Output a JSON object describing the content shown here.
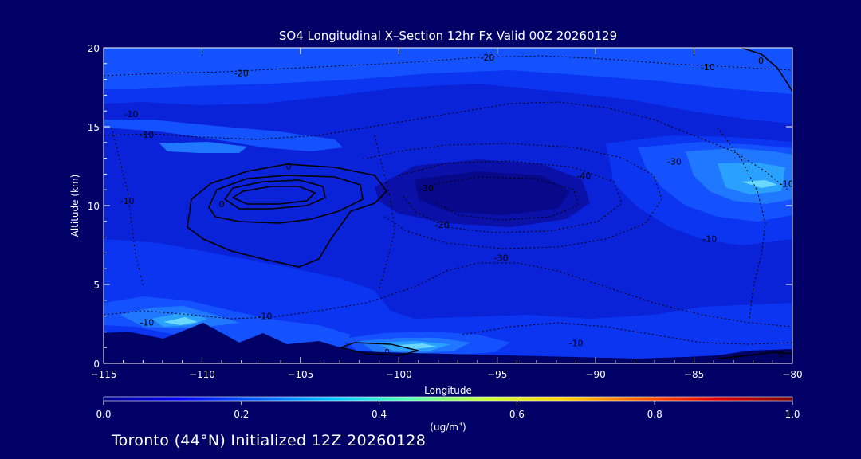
{
  "chart_data": {
    "type": "heatmap",
    "title": "SO4 Longitudinal X–Section 12hr  Fx Valid 00Z 20260129",
    "xlabel": "Longitude",
    "ylabel": "Altitude (km)",
    "xlim": [
      -115,
      -80
    ],
    "ylim": [
      0,
      20
    ],
    "x_ticks": [
      "−115",
      "−110",
      "−105",
      "−100",
      "−95",
      "−90",
      "−85",
      "−80"
    ],
    "x_tick_values": [
      -115,
      -110,
      -105,
      -100,
      -95,
      -90,
      -85,
      -80
    ],
    "y_ticks": [
      "0",
      "5",
      "10",
      "15",
      "20"
    ],
    "y_tick_values": [
      0,
      5,
      10,
      15,
      20
    ],
    "colorbar": {
      "min": 0.0,
      "max": 1.0,
      "ticks": [
        "0.0",
        "0.2",
        "0.4",
        "0.6",
        "0.8",
        "1.0"
      ],
      "tick_values": [
        0.0,
        0.2,
        0.4,
        0.6,
        0.8,
        1.0
      ],
      "units_main": "(ug/m",
      "units_sup": "3",
      "units_close": ")",
      "colors": [
        "#000088",
        "#0000ff",
        "#0060ff",
        "#00c8ff",
        "#50ffb0",
        "#c8ff30",
        "#ffd000",
        "#ff6000",
        "#e00000",
        "#800000"
      ]
    },
    "field_levels": [
      {
        "value": 0.08,
        "color": "#0a10a8"
      },
      {
        "value": 0.12,
        "color": "#0a22d8"
      },
      {
        "value": 0.16,
        "color": "#0b35f0"
      },
      {
        "value": 0.2,
        "color": "#1452ff"
      },
      {
        "value": 0.27,
        "color": "#1f78ff"
      },
      {
        "value": 0.33,
        "color": "#2aa0ff"
      },
      {
        "value": 0.42,
        "color": "#6ad8ff"
      }
    ],
    "contour_labels": [
      {
        "text": "-20",
        "lon": -108.0,
        "alt": 18.4
      },
      {
        "text": "-20",
        "lon": -95.5,
        "alt": 19.4
      },
      {
        "text": "-10",
        "lon": -84.3,
        "alt": 18.8
      },
      {
        "text": "0",
        "lon": -81.6,
        "alt": 19.2
      },
      {
        "text": "-10",
        "lon": -113.6,
        "alt": 15.8
      },
      {
        "text": "-10",
        "lon": -112.8,
        "alt": 14.5
      },
      {
        "text": "-30",
        "lon": -86.0,
        "alt": 12.8
      },
      {
        "text": "-40",
        "lon": -90.6,
        "alt": 11.9
      },
      {
        "text": "-10",
        "lon": -80.3,
        "alt": 11.4
      },
      {
        "text": "-30",
        "lon": -98.6,
        "alt": 11.1
      },
      {
        "text": "-10",
        "lon": -113.8,
        "alt": 10.3
      },
      {
        "text": "0",
        "lon": -105.6,
        "alt": 12.5
      },
      {
        "text": "0",
        "lon": -109.0,
        "alt": 10.1
      },
      {
        "text": "-20",
        "lon": -97.8,
        "alt": 8.8
      },
      {
        "text": "-10",
        "lon": -84.2,
        "alt": 7.9
      },
      {
        "text": "-30",
        "lon": -94.8,
        "alt": 6.7
      },
      {
        "text": "-10",
        "lon": -112.8,
        "alt": 2.6
      },
      {
        "text": "-10",
        "lon": -106.8,
        "alt": 3.0
      },
      {
        "text": "-10",
        "lon": -91.0,
        "alt": 1.3
      },
      {
        "text": "0",
        "lon": -100.6,
        "alt": 0.7
      },
      {
        "text": "0",
        "lon": -80.6,
        "alt": 0.6
      }
    ]
  },
  "footer": {
    "text": "Toronto (44°N) Initialized 12Z 20260128"
  }
}
